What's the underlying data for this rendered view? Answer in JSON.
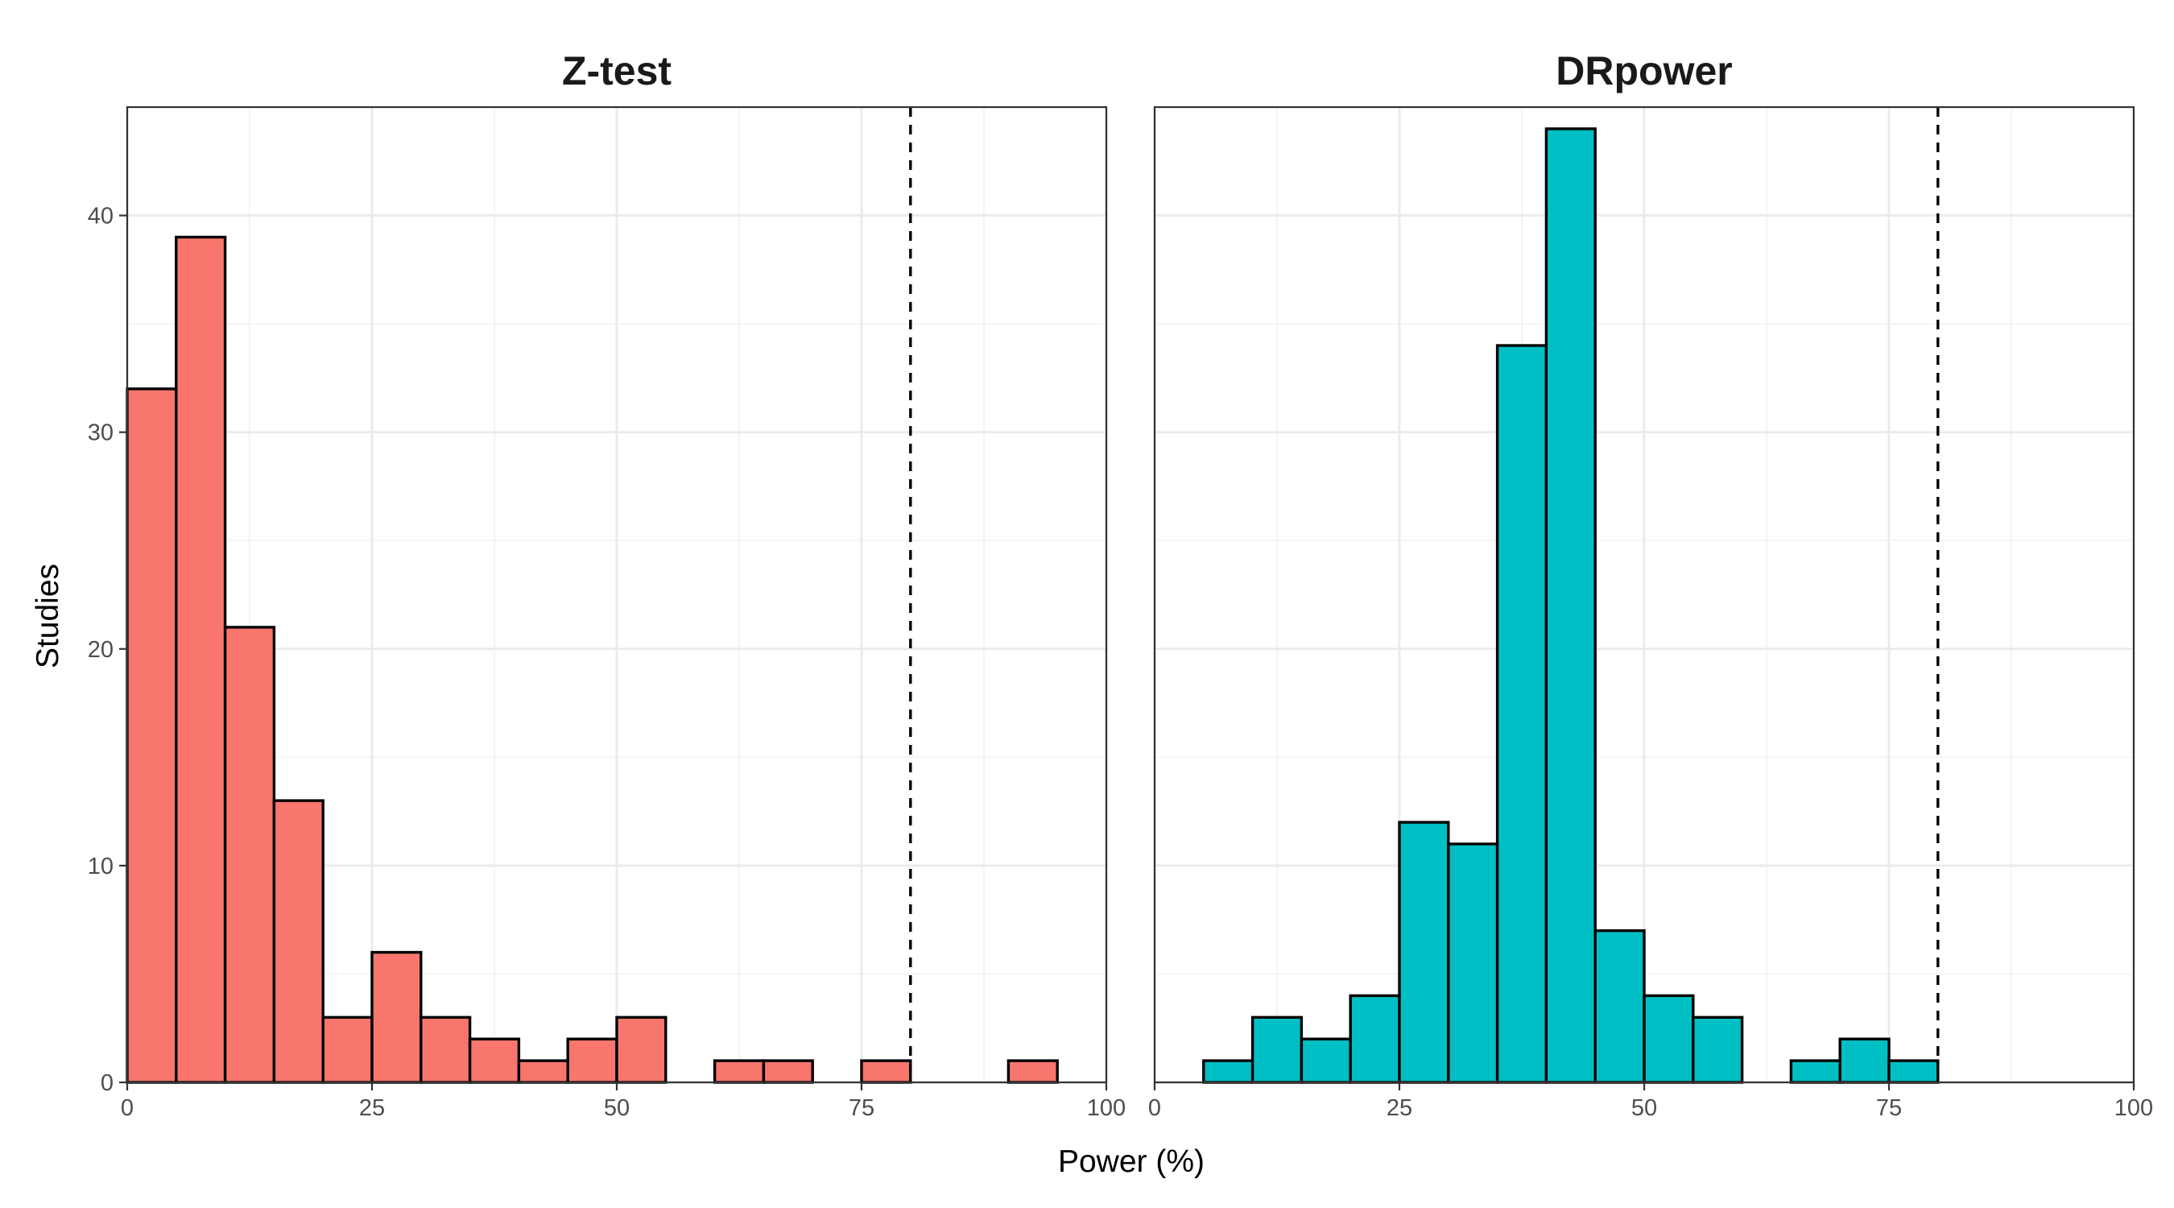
{
  "chart_data": {
    "type": "bar",
    "subtype": "histogram (faceted)",
    "xlabel": "Power (%)",
    "ylabel": "Studies",
    "xlim": [
      0,
      100
    ],
    "ylim": [
      0,
      45
    ],
    "x_ticks": [
      0,
      25,
      50,
      75,
      100
    ],
    "y_ticks": [
      0,
      10,
      20,
      30,
      40
    ],
    "bin_width": 5,
    "reference_line": {
      "x": 80,
      "style": "dashed"
    },
    "grid": true,
    "panels": [
      {
        "title": "Z-test",
        "color": "#F8766D",
        "bins": [
          {
            "start": 0,
            "end": 5,
            "count": 32
          },
          {
            "start": 5,
            "end": 10,
            "count": 39
          },
          {
            "start": 10,
            "end": 15,
            "count": 21
          },
          {
            "start": 15,
            "end": 20,
            "count": 13
          },
          {
            "start": 20,
            "end": 25,
            "count": 3
          },
          {
            "start": 25,
            "end": 30,
            "count": 6
          },
          {
            "start": 30,
            "end": 35,
            "count": 3
          },
          {
            "start": 35,
            "end": 40,
            "count": 2
          },
          {
            "start": 40,
            "end": 45,
            "count": 1
          },
          {
            "start": 45,
            "end": 50,
            "count": 2
          },
          {
            "start": 50,
            "end": 55,
            "count": 3
          },
          {
            "start": 60,
            "end": 65,
            "count": 1
          },
          {
            "start": 65,
            "end": 70,
            "count": 1
          },
          {
            "start": 75,
            "end": 80,
            "count": 1
          },
          {
            "start": 90,
            "end": 95,
            "count": 1
          }
        ]
      },
      {
        "title": "DRpower",
        "color": "#00BFC4",
        "bins": [
          {
            "start": 5,
            "end": 10,
            "count": 1
          },
          {
            "start": 10,
            "end": 15,
            "count": 3
          },
          {
            "start": 15,
            "end": 20,
            "count": 2
          },
          {
            "start": 20,
            "end": 25,
            "count": 4
          },
          {
            "start": 25,
            "end": 30,
            "count": 12
          },
          {
            "start": 30,
            "end": 35,
            "count": 11
          },
          {
            "start": 35,
            "end": 40,
            "count": 34
          },
          {
            "start": 40,
            "end": 45,
            "count": 44
          },
          {
            "start": 45,
            "end": 50,
            "count": 7
          },
          {
            "start": 50,
            "end": 55,
            "count": 4
          },
          {
            "start": 55,
            "end": 60,
            "count": 3
          },
          {
            "start": 65,
            "end": 70,
            "count": 1
          },
          {
            "start": 70,
            "end": 75,
            "count": 2
          },
          {
            "start": 75,
            "end": 80,
            "count": 1
          }
        ]
      }
    ]
  }
}
